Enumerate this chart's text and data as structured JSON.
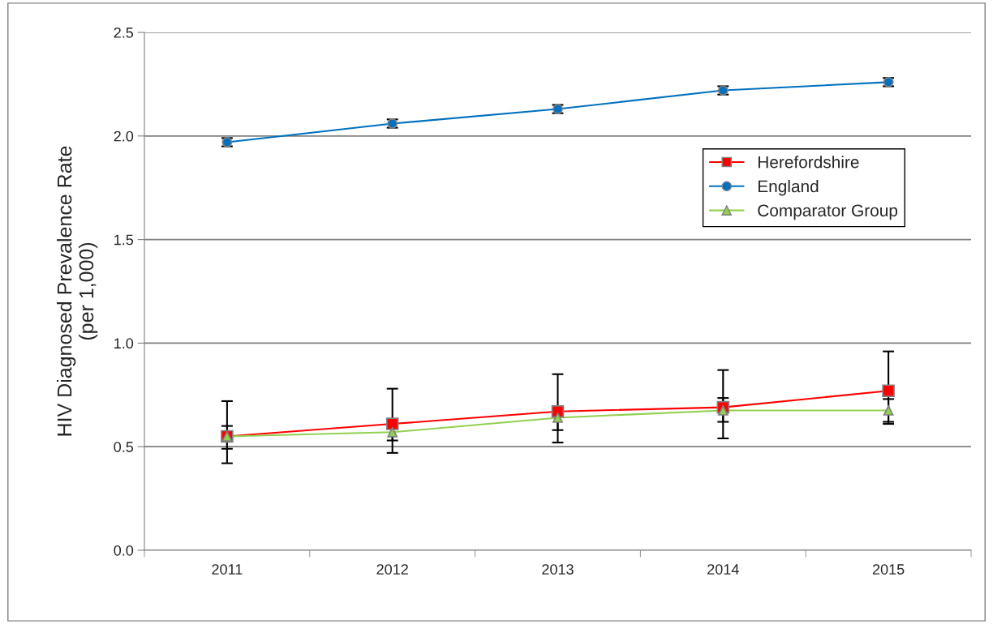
{
  "chart_data": {
    "type": "line",
    "ylabel": "HIV Diagnosed Prevalence Rate\n(per 1,000)",
    "categories": [
      "2011",
      "2012",
      "2013",
      "2014",
      "2015"
    ],
    "series": [
      {
        "name": "Herefordshire",
        "color": "#ff0000",
        "marker": "square",
        "values": [
          0.55,
          0.61,
          0.67,
          0.69,
          0.77
        ],
        "errors": [
          [
            0.42,
            0.72
          ],
          [
            0.47,
            0.78
          ],
          [
            0.52,
            0.85
          ],
          [
            0.54,
            0.87
          ],
          [
            0.61,
            0.96
          ]
        ]
      },
      {
        "name": "England",
        "color": "#0070c0",
        "marker": "circle",
        "values": [
          1.97,
          2.06,
          2.13,
          2.22,
          2.26
        ],
        "errors": [
          [
            1.95,
            1.99
          ],
          [
            2.04,
            2.08
          ],
          [
            2.11,
            2.15
          ],
          [
            2.2,
            2.24
          ],
          [
            2.24,
            2.28
          ]
        ]
      },
      {
        "name": "Comparator Group",
        "color": "#92d050",
        "marker": "triangle",
        "values": [
          0.55,
          0.57,
          0.64,
          0.675,
          0.675
        ],
        "errors": [
          [
            0.49,
            0.6
          ],
          [
            0.53,
            0.61
          ],
          [
            0.58,
            0.69
          ],
          [
            0.62,
            0.735
          ],
          [
            0.62,
            0.73
          ]
        ]
      }
    ],
    "ylim": [
      0,
      2.5
    ],
    "yticks": [
      {
        "value": 0,
        "label": "0.0"
      },
      {
        "value": 0.5,
        "label": "0.5"
      },
      {
        "value": 1,
        "label": "1.0"
      },
      {
        "value": 1.5,
        "label": "1.5"
      },
      {
        "value": 2,
        "label": "2.0"
      },
      {
        "value": 2.5,
        "label": "2.5"
      }
    ],
    "grid": "y",
    "legend": "right",
    "line_style": "solid"
  }
}
